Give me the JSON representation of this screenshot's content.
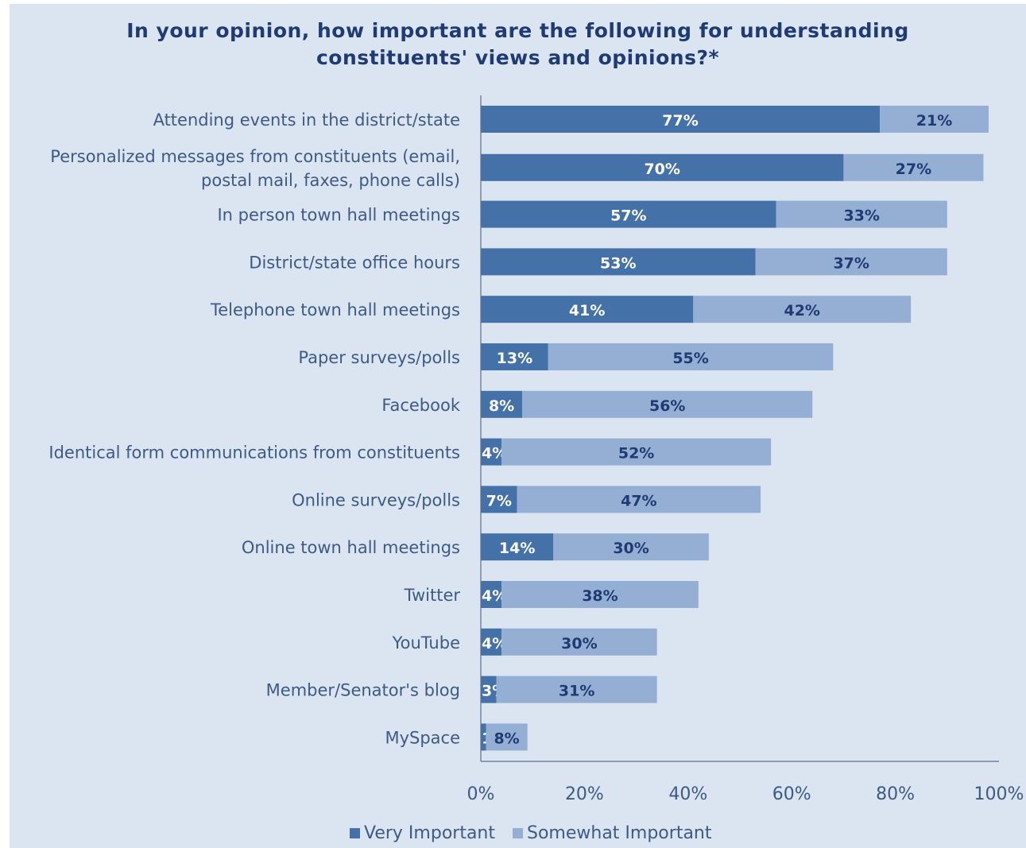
{
  "chart_data": {
    "type": "bar",
    "orientation": "horizontal",
    "stacked": true,
    "title": "In your opinion, how important are the following for understanding constituents' views and opinions?*",
    "title_lines": [
      "In your opinion, how important are the following for understanding",
      "constituents' views and opinions?*"
    ],
    "categories": [
      [
        "Attending events in the district/state"
      ],
      [
        "Personalized messages from constituents (email,",
        "postal mail, faxes, phone calls)"
      ],
      [
        "In person town hall meetings"
      ],
      [
        "District/state office hours"
      ],
      [
        "Telephone town hall meetings"
      ],
      [
        "Paper surveys/polls"
      ],
      [
        "Facebook"
      ],
      [
        "Identical form communications from constituents"
      ],
      [
        "Online surveys/polls"
      ],
      [
        "Online town hall meetings"
      ],
      [
        "Twitter"
      ],
      [
        "YouTube"
      ],
      [
        "Member/Senator's blog"
      ],
      [
        "MySpace"
      ]
    ],
    "series": [
      {
        "name": "Very Important",
        "color": "#4472a8",
        "values": [
          77,
          70,
          57,
          53,
          41,
          13,
          8,
          4,
          7,
          14,
          4,
          4,
          3,
          1
        ]
      },
      {
        "name": "Somewhat Important",
        "color": "#95aed4",
        "values": [
          21,
          27,
          33,
          37,
          42,
          55,
          56,
          52,
          47,
          30,
          38,
          30,
          31,
          8
        ]
      }
    ],
    "xlim": [
      0,
      100
    ],
    "x_ticks": [
      "0%",
      "20%",
      "40%",
      "60%",
      "80%",
      "100%"
    ],
    "grid": false,
    "legend_position": "bottom"
  }
}
